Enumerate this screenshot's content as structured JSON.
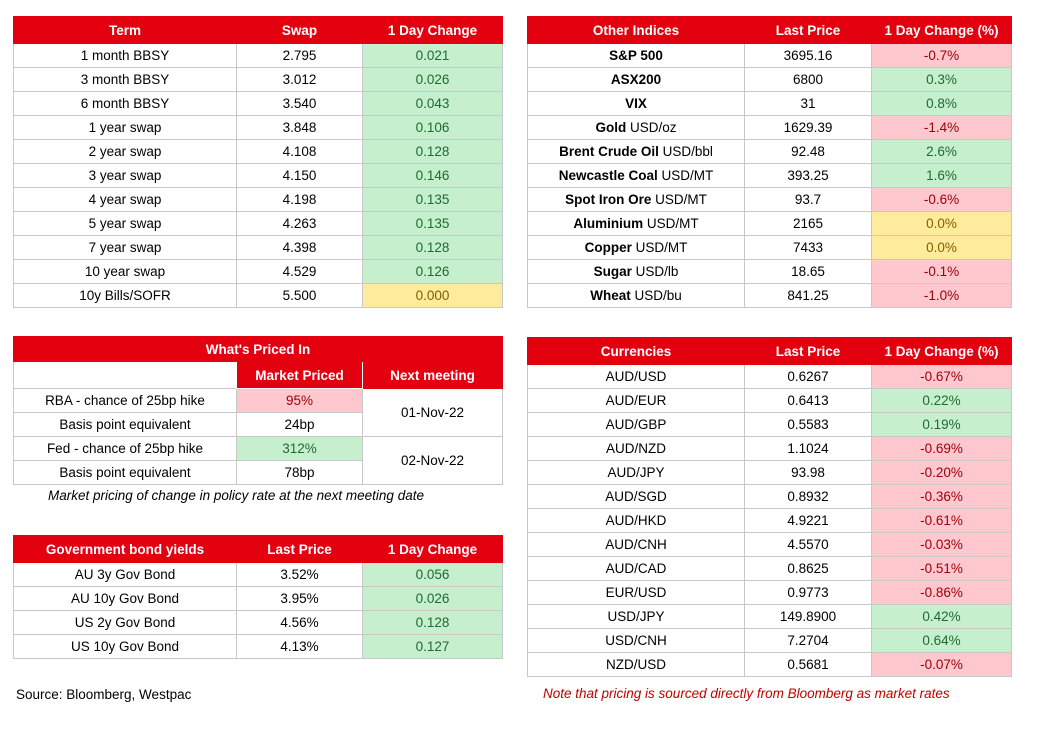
{
  "swaps": {
    "headers": [
      "Term",
      "Swap",
      "1 Day Change"
    ],
    "rows": [
      {
        "term": "1 month BBSY",
        "swap": "2.795",
        "change": "0.021",
        "status": "green"
      },
      {
        "term": "3 month BBSY",
        "swap": "3.012",
        "change": "0.026",
        "status": "green"
      },
      {
        "term": "6 month BBSY",
        "swap": "3.540",
        "change": "0.043",
        "status": "green"
      },
      {
        "term": "1 year swap",
        "swap": "3.848",
        "change": "0.106",
        "status": "green"
      },
      {
        "term": "2 year swap",
        "swap": "4.108",
        "change": "0.128",
        "status": "green"
      },
      {
        "term": "3 year swap",
        "swap": "4.150",
        "change": "0.146",
        "status": "green"
      },
      {
        "term": "4 year swap",
        "swap": "4.198",
        "change": "0.135",
        "status": "green"
      },
      {
        "term": "5 year swap",
        "swap": "4.263",
        "change": "0.135",
        "status": "green"
      },
      {
        "term": "7 year swap",
        "swap": "4.398",
        "change": "0.128",
        "status": "green"
      },
      {
        "term": "10 year swap",
        "swap": "4.529",
        "change": "0.126",
        "status": "green"
      },
      {
        "term": "10y Bills/SOFR",
        "swap": "5.500",
        "change": "0.000",
        "status": "yellow"
      }
    ]
  },
  "indices": {
    "headers": [
      "Other Indices",
      "Last Price",
      "1 Day Change (%)"
    ],
    "rows": [
      {
        "name": "S&P 500",
        "unit": "",
        "price": "3695.16",
        "change": "-0.7%",
        "status": "red"
      },
      {
        "name": "ASX200",
        "unit": "",
        "price": "6800",
        "change": "0.3%",
        "status": "green"
      },
      {
        "name": "VIX",
        "unit": "",
        "price": "31",
        "change": "0.8%",
        "status": "green"
      },
      {
        "name": "Gold",
        "unit": "USD/oz",
        "price": "1629.39",
        "change": "-1.4%",
        "status": "red"
      },
      {
        "name": "Brent Crude Oil",
        "unit": "USD/bbl",
        "price": "92.48",
        "change": "2.6%",
        "status": "green"
      },
      {
        "name": "Newcastle Coal",
        "unit": "USD/MT",
        "price": "393.25",
        "change": "1.6%",
        "status": "green"
      },
      {
        "name": "Spot Iron Ore",
        "unit": "USD/MT",
        "price": "93.7",
        "change": "-0.6%",
        "status": "red"
      },
      {
        "name": "Aluminium",
        "unit": "USD/MT",
        "price": "2165",
        "change": "0.0%",
        "status": "yellow"
      },
      {
        "name": "Copper",
        "unit": "USD/MT",
        "price": "7433",
        "change": "0.0%",
        "status": "yellow"
      },
      {
        "name": "Sugar",
        "unit": "USD/lb",
        "price": "18.65",
        "change": "-0.1%",
        "status": "red"
      },
      {
        "name": "Wheat",
        "unit": "USD/bu",
        "price": "841.25",
        "change": "-1.0%",
        "status": "red"
      }
    ]
  },
  "priced_in": {
    "title": "What's Priced In",
    "col1": "Market Priced",
    "col2": "Next meeting",
    "rows": [
      {
        "label": "RBA - chance of 25bp hike",
        "value": "95%",
        "status": "red"
      },
      {
        "label": "Basis point equivalent",
        "value": "24bp",
        "status": ""
      },
      {
        "label": "Fed - chance of 25bp hike",
        "value": "312%",
        "status": "green"
      },
      {
        "label": "Basis point equivalent",
        "value": "78bp",
        "status": ""
      }
    ],
    "meeting1": "01-Nov-22",
    "meeting2": "02-Nov-22",
    "note": "Market pricing of change in policy rate at the next meeting date"
  },
  "bonds": {
    "headers": [
      "Government bond yields",
      "Last Price",
      "1 Day Change"
    ],
    "rows": [
      {
        "name": "AU 3y Gov Bond",
        "price": "3.52%",
        "change": "0.056",
        "status": "green"
      },
      {
        "name": "AU 10y Gov Bond",
        "price": "3.95%",
        "change": "0.026",
        "status": "green"
      },
      {
        "name": "US 2y Gov Bond",
        "price": "4.56%",
        "change": "0.128",
        "status": "green"
      },
      {
        "name": "US 10y Gov Bond",
        "price": "4.13%",
        "change": "0.127",
        "status": "green"
      }
    ]
  },
  "currencies": {
    "headers": [
      "Currencies",
      "Last Price",
      "1 Day Change (%)"
    ],
    "rows": [
      {
        "pair": "AUD/USD",
        "price": "0.6267",
        "change": "-0.67%",
        "status": "red"
      },
      {
        "pair": "AUD/EUR",
        "price": "0.6413",
        "change": "0.22%",
        "status": "green"
      },
      {
        "pair": "AUD/GBP",
        "price": "0.5583",
        "change": "0.19%",
        "status": "green"
      },
      {
        "pair": "AUD/NZD",
        "price": "1.1024",
        "change": "-0.69%",
        "status": "red"
      },
      {
        "pair": "AUD/JPY",
        "price": "93.98",
        "change": "-0.20%",
        "status": "red"
      },
      {
        "pair": "AUD/SGD",
        "price": "0.8932",
        "change": "-0.36%",
        "status": "red"
      },
      {
        "pair": "AUD/HKD",
        "price": "4.9221",
        "change": "-0.61%",
        "status": "red"
      },
      {
        "pair": "AUD/CNH",
        "price": "4.5570",
        "change": "-0.03%",
        "status": "red"
      },
      {
        "pair": "AUD/CAD",
        "price": "0.8625",
        "change": "-0.51%",
        "status": "red"
      },
      {
        "pair": "EUR/USD",
        "price": "0.9773",
        "change": "-0.86%",
        "status": "red"
      },
      {
        "pair": "USD/JPY",
        "price": "149.8900",
        "change": "0.42%",
        "status": "green"
      },
      {
        "pair": "USD/CNH",
        "price": "7.2704",
        "change": "0.64%",
        "status": "green"
      },
      {
        "pair": "NZD/USD",
        "price": "0.5681",
        "change": "-0.07%",
        "status": "red"
      }
    ]
  },
  "source": "Source: Bloomberg, Westpac",
  "pricing_note": "Note that pricing is sourced directly from Bloomberg as market rates",
  "colors": {
    "header": "#e3000f",
    "green": "#c6efce",
    "red": "#ffc7ce",
    "yellow": "#ffeb9c",
    "note_text": "#c00000"
  }
}
